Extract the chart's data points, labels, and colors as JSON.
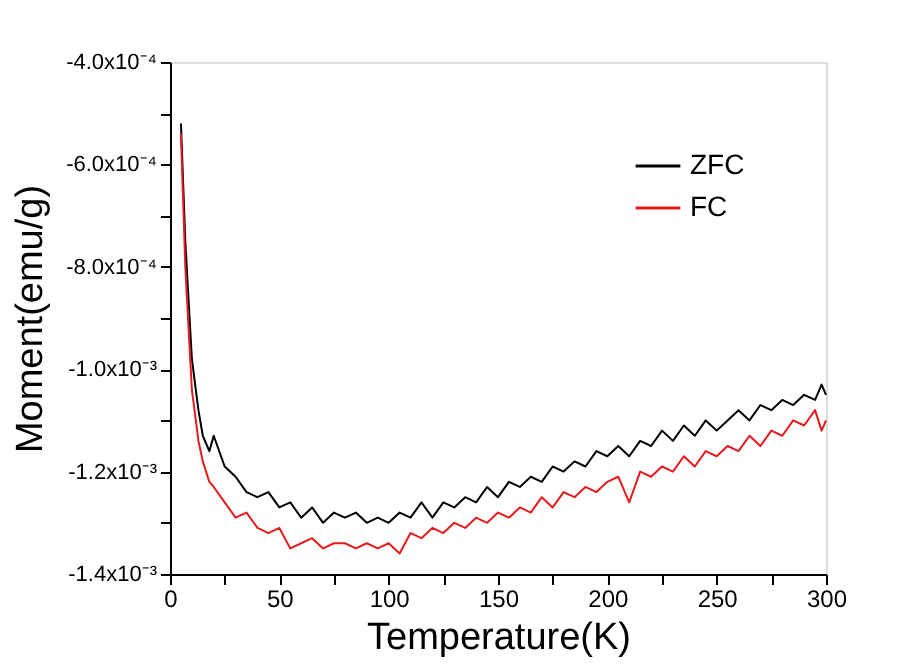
{
  "chart_data": {
    "type": "line",
    "xlabel": "Temperature(K)",
    "ylabel": "Moment(emu/g)",
    "xlim": [
      0,
      300
    ],
    "xticks": [
      0,
      {
        "value": 25,
        "label": null
      },
      50,
      {
        "value": 75,
        "label": null
      },
      100,
      {
        "value": 125,
        "label": null
      },
      150,
      {
        "value": 175,
        "label": null
      },
      200,
      {
        "value": 225,
        "label": null
      },
      250,
      {
        "value": 275,
        "label": null
      },
      300
    ],
    "ylim": [
      -0.0014,
      -0.0004
    ],
    "yticks": [
      {
        "value": -0.0014,
        "label": "-1.4x10⁻³"
      },
      {
        "value": -0.0013,
        "label": null
      },
      {
        "value": -0.0012,
        "label": "-1.2x10⁻³"
      },
      {
        "value": -0.0011,
        "label": null
      },
      {
        "value": -0.001,
        "label": "-1.0x10⁻³"
      },
      {
        "value": -0.0009,
        "label": null
      },
      {
        "value": -0.0008,
        "label": "-8.0x10⁻⁴"
      },
      {
        "value": -0.0007,
        "label": null
      },
      {
        "value": -0.0006,
        "label": "-6.0x10⁻⁴"
      },
      {
        "value": -0.0005,
        "label": null
      },
      {
        "value": -0.0004,
        "label": "-4.0x10⁻⁴"
      }
    ],
    "grid": false,
    "legend": "top right",
    "marker": "none",
    "line_style": "solid",
    "x": [
      5,
      7,
      10,
      13,
      15,
      18,
      20,
      25,
      30,
      35,
      40,
      45,
      50,
      55,
      60,
      65,
      70,
      75,
      80,
      85,
      90,
      95,
      100,
      105,
      110,
      115,
      120,
      125,
      130,
      135,
      140,
      145,
      150,
      155,
      160,
      165,
      170,
      175,
      180,
      185,
      190,
      195,
      200,
      205,
      210,
      215,
      220,
      225,
      230,
      235,
      240,
      245,
      250,
      255,
      260,
      265,
      270,
      275,
      280,
      285,
      290,
      295,
      298,
      300
    ],
    "series": [
      {
        "name": "ZFC",
        "color": "#000000",
        "values": [
          -0.00052,
          -0.00075,
          -0.00098,
          -0.00108,
          -0.00113,
          -0.00116,
          -0.00113,
          -0.00119,
          -0.00121,
          -0.00124,
          -0.00125,
          -0.00124,
          -0.00127,
          -0.00126,
          -0.00129,
          -0.00127,
          -0.0013,
          -0.00128,
          -0.00129,
          -0.00128,
          -0.0013,
          -0.00129,
          -0.0013,
          -0.00128,
          -0.00129,
          -0.00126,
          -0.00129,
          -0.00126,
          -0.00127,
          -0.00125,
          -0.00126,
          -0.00123,
          -0.00125,
          -0.00122,
          -0.00123,
          -0.00121,
          -0.00122,
          -0.00119,
          -0.0012,
          -0.00118,
          -0.00119,
          -0.00116,
          -0.00117,
          -0.00115,
          -0.00117,
          -0.00114,
          -0.00115,
          -0.00112,
          -0.00114,
          -0.00111,
          -0.00113,
          -0.0011,
          -0.00112,
          -0.0011,
          -0.00108,
          -0.0011,
          -0.00107,
          -0.00108,
          -0.00106,
          -0.00107,
          -0.00105,
          -0.00106,
          -0.00103,
          -0.00105
        ]
      },
      {
        "name": "FC",
        "color": "#e41a1c",
        "values": [
          -0.00054,
          -0.0008,
          -0.00104,
          -0.00114,
          -0.00118,
          -0.00122,
          -0.00123,
          -0.00126,
          -0.00129,
          -0.00128,
          -0.00131,
          -0.00132,
          -0.00131,
          -0.00135,
          -0.00134,
          -0.00133,
          -0.00135,
          -0.00134,
          -0.00134,
          -0.00135,
          -0.00134,
          -0.00135,
          -0.00134,
          -0.00136,
          -0.00132,
          -0.00133,
          -0.00131,
          -0.00132,
          -0.0013,
          -0.00131,
          -0.00129,
          -0.0013,
          -0.00128,
          -0.00129,
          -0.00127,
          -0.00128,
          -0.00125,
          -0.00127,
          -0.00124,
          -0.00125,
          -0.00123,
          -0.00124,
          -0.00122,
          -0.00121,
          -0.00126,
          -0.0012,
          -0.00121,
          -0.00119,
          -0.0012,
          -0.00117,
          -0.00119,
          -0.00116,
          -0.00117,
          -0.00115,
          -0.00116,
          -0.00113,
          -0.00115,
          -0.00112,
          -0.00113,
          -0.0011,
          -0.00111,
          -0.00108,
          -0.00112,
          -0.0011
        ]
      }
    ]
  }
}
